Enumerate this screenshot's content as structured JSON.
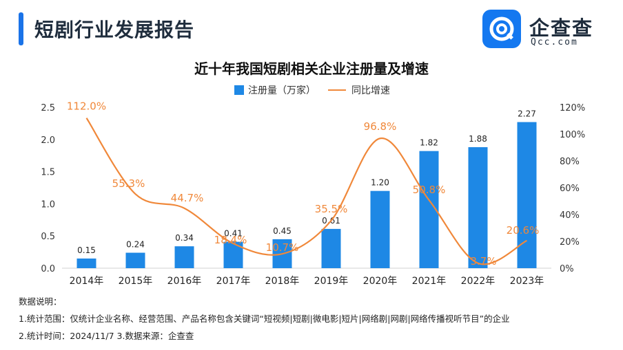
{
  "header": {
    "title": "短剧行业发展报告",
    "logo_text": "企查查",
    "logo_sub": "Qcc.com"
  },
  "legend": {
    "bar": "注册量（万家）",
    "line": "同比增速"
  },
  "notes": {
    "heading": "数据说明：",
    "line1": "1.统计范围：仅统计企业名称、经营范围、产品名称包含关键词“短视频|短剧|微电影|短片|网络剧|网剧|网络传播视听节目”的企业",
    "line2": "2.统计时间：2024/11/7    3.数据来源：企查查"
  },
  "colors": {
    "accent": "#1a73e8",
    "bar": "#1e88e5",
    "line": "#f0883a"
  },
  "chart_data": {
    "type": "bar",
    "title": "近十年我国短剧相关企业注册量及增速",
    "categories": [
      "2014年",
      "2015年",
      "2016年",
      "2017年",
      "2018年",
      "2019年",
      "2020年",
      "2021年",
      "2022年",
      "2023年"
    ],
    "series": [
      {
        "name": "注册量（万家）",
        "type": "bar",
        "axis": "left",
        "values": [
          0.15,
          0.24,
          0.34,
          0.41,
          0.45,
          0.61,
          1.2,
          1.82,
          1.88,
          2.27
        ],
        "labels": [
          "0.15",
          "0.24",
          "0.34",
          "0.41",
          "0.45",
          "0.61",
          "1.20",
          "1.82",
          "1.88",
          "2.27"
        ]
      },
      {
        "name": "同比增速",
        "type": "line",
        "axis": "right",
        "values": [
          112.0,
          55.3,
          44.7,
          18.4,
          10.7,
          35.5,
          96.8,
          50.8,
          3.7,
          20.6
        ],
        "labels": [
          "112.0%",
          "55.3%",
          "44.7%",
          "18.4%",
          "10.7%",
          "35.5%",
          "96.8%",
          "50.8%",
          "3.7%",
          "20.6%"
        ]
      }
    ],
    "ylim_left": [
      0,
      2.5
    ],
    "yticks_left": [
      "0.0",
      "0.5",
      "1.0",
      "1.5",
      "2.0",
      "2.5"
    ],
    "ylim_right": [
      0,
      120
    ],
    "yticks_right": [
      "0%",
      "20%",
      "40%",
      "60%",
      "80%",
      "100%",
      "120%"
    ],
    "legend_position": "top-center",
    "grid": false
  }
}
